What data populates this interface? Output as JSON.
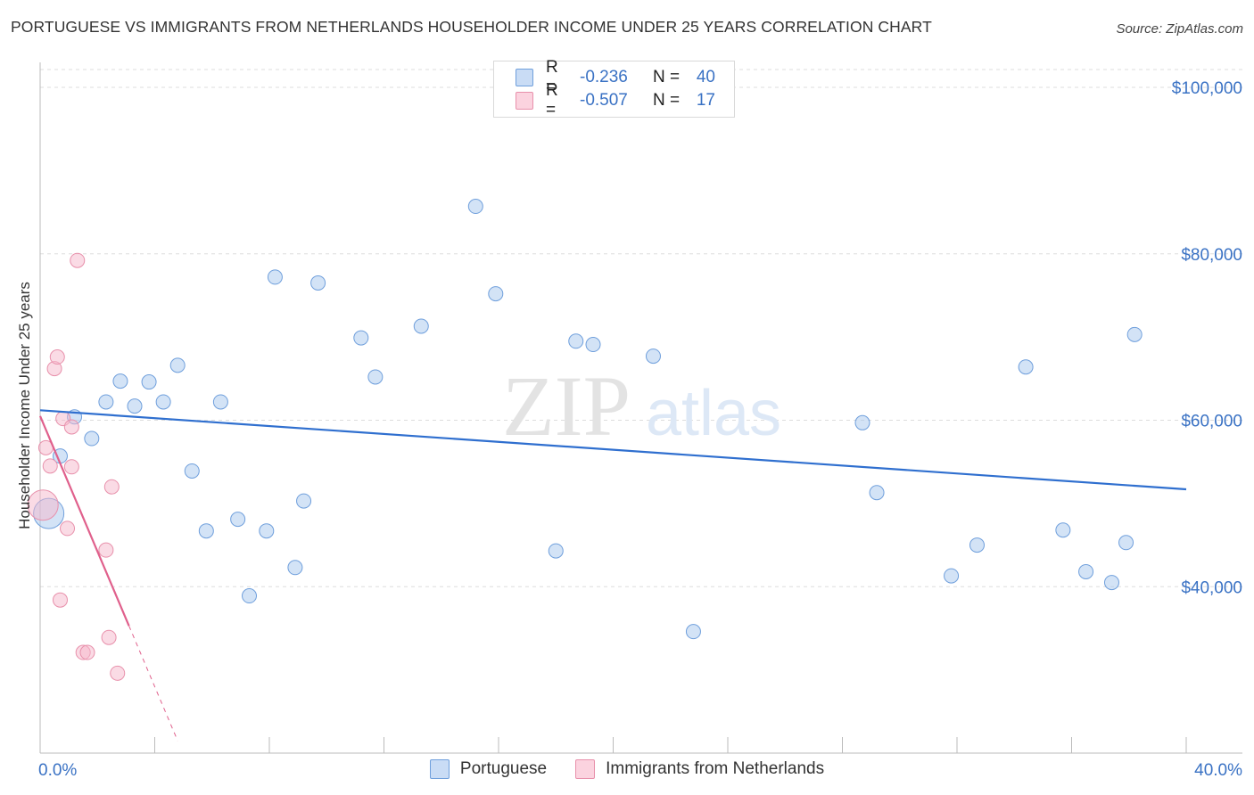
{
  "header": {
    "title": "PORTUGUESE VS IMMIGRANTS FROM NETHERLANDS HOUSEHOLDER INCOME UNDER 25 YEARS CORRELATION CHART",
    "source": "Source: ZipAtlas.com"
  },
  "watermark": {
    "zip": "ZIP",
    "atlas": "atlas"
  },
  "legend": {
    "rows": [
      {
        "r_label": "R =",
        "r_value": "-0.236",
        "n_label": "N =",
        "n_value": "40",
        "color": "#a8c8ee"
      },
      {
        "r_label": "R =",
        "r_value": "-0.507",
        "n_label": "N =",
        "n_value": "17",
        "color": "#f5b8cb"
      }
    ]
  },
  "bottom_legend": {
    "items": [
      {
        "label": "Portuguese",
        "color": "#a8c8ee"
      },
      {
        "label": "Immigrants from Netherlands",
        "color": "#f5b8cb"
      }
    ]
  },
  "chart_data": {
    "type": "scatter",
    "title": "PORTUGUESE VS IMMIGRANTS FROM NETHERLANDS HOUSEHOLDER INCOME UNDER 25 YEARS CORRELATION CHART",
    "xlabel": "",
    "ylabel": "Householder Income Under 25 years",
    "xlim": [
      0,
      40
    ],
    "ylim": [
      20000,
      103000
    ],
    "x_tick_labels": [
      "0.0%",
      "40.0%"
    ],
    "y_ticks": [
      40000,
      60000,
      80000,
      100000
    ],
    "y_tick_labels": [
      "$40,000",
      "$60,000",
      "$80,000",
      "$100,000"
    ],
    "grid": true,
    "series": [
      {
        "name": "Portuguese",
        "color": "#a8c8ee",
        "stroke": "#6f9fdc",
        "trend": {
          "x": [
            0,
            40
          ],
          "y": [
            61200,
            51700
          ],
          "color": "#2f6fcf",
          "dashed_x": null
        },
        "points": [
          {
            "x": 0.3,
            "y": 48800,
            "big": true
          },
          {
            "x": 0.7,
            "y": 55700
          },
          {
            "x": 1.2,
            "y": 60400
          },
          {
            "x": 1.8,
            "y": 57800
          },
          {
            "x": 2.3,
            "y": 62200
          },
          {
            "x": 2.8,
            "y": 64700
          },
          {
            "x": 3.3,
            "y": 61700
          },
          {
            "x": 3.8,
            "y": 64600
          },
          {
            "x": 4.3,
            "y": 62200
          },
          {
            "x": 4.8,
            "y": 66600
          },
          {
            "x": 5.3,
            "y": 53900
          },
          {
            "x": 5.8,
            "y": 46700
          },
          {
            "x": 6.3,
            "y": 62200
          },
          {
            "x": 6.9,
            "y": 48100
          },
          {
            "x": 7.3,
            "y": 38900
          },
          {
            "x": 7.9,
            "y": 46700
          },
          {
            "x": 8.2,
            "y": 77200
          },
          {
            "x": 8.9,
            "y": 42300
          },
          {
            "x": 9.2,
            "y": 50300
          },
          {
            "x": 9.7,
            "y": 76500
          },
          {
            "x": 11.2,
            "y": 69900
          },
          {
            "x": 11.7,
            "y": 65200
          },
          {
            "x": 13.3,
            "y": 71300
          },
          {
            "x": 15.2,
            "y": 85700
          },
          {
            "x": 15.9,
            "y": 75200
          },
          {
            "x": 18.0,
            "y": 44300
          },
          {
            "x": 18.7,
            "y": 69500
          },
          {
            "x": 19.3,
            "y": 69100
          },
          {
            "x": 21.4,
            "y": 67700
          },
          {
            "x": 22.8,
            "y": 34600
          },
          {
            "x": 28.7,
            "y": 59700
          },
          {
            "x": 29.2,
            "y": 51300
          },
          {
            "x": 31.8,
            "y": 41300
          },
          {
            "x": 32.7,
            "y": 45000
          },
          {
            "x": 34.4,
            "y": 66400
          },
          {
            "x": 35.7,
            "y": 46800
          },
          {
            "x": 36.5,
            "y": 41800
          },
          {
            "x": 37.4,
            "y": 40500
          },
          {
            "x": 37.9,
            "y": 45300
          },
          {
            "x": 38.2,
            "y": 70300
          }
        ]
      },
      {
        "name": "Immigrants from Netherlands",
        "color": "#f5b8cb",
        "stroke": "#e890ab",
        "trend": {
          "x": [
            0,
            3.1
          ],
          "y": [
            60500,
            35300
          ],
          "color": "#e0608c",
          "dashed_to_x": 4.8
        },
        "points": [
          {
            "x": 0.1,
            "y": 49800,
            "big": true
          },
          {
            "x": 0.2,
            "y": 56700
          },
          {
            "x": 0.35,
            "y": 54500
          },
          {
            "x": 0.5,
            "y": 66200
          },
          {
            "x": 0.6,
            "y": 67600
          },
          {
            "x": 0.7,
            "y": 38400
          },
          {
            "x": 0.8,
            "y": 60200
          },
          {
            "x": 0.95,
            "y": 47000
          },
          {
            "x": 1.1,
            "y": 59200
          },
          {
            "x": 1.1,
            "y": 54400
          },
          {
            "x": 1.3,
            "y": 79200
          },
          {
            "x": 1.5,
            "y": 32100
          },
          {
            "x": 1.65,
            "y": 32100
          },
          {
            "x": 2.3,
            "y": 44400
          },
          {
            "x": 2.5,
            "y": 52000
          },
          {
            "x": 2.4,
            "y": 33900
          },
          {
            "x": 2.7,
            "y": 29600
          }
        ]
      }
    ]
  }
}
